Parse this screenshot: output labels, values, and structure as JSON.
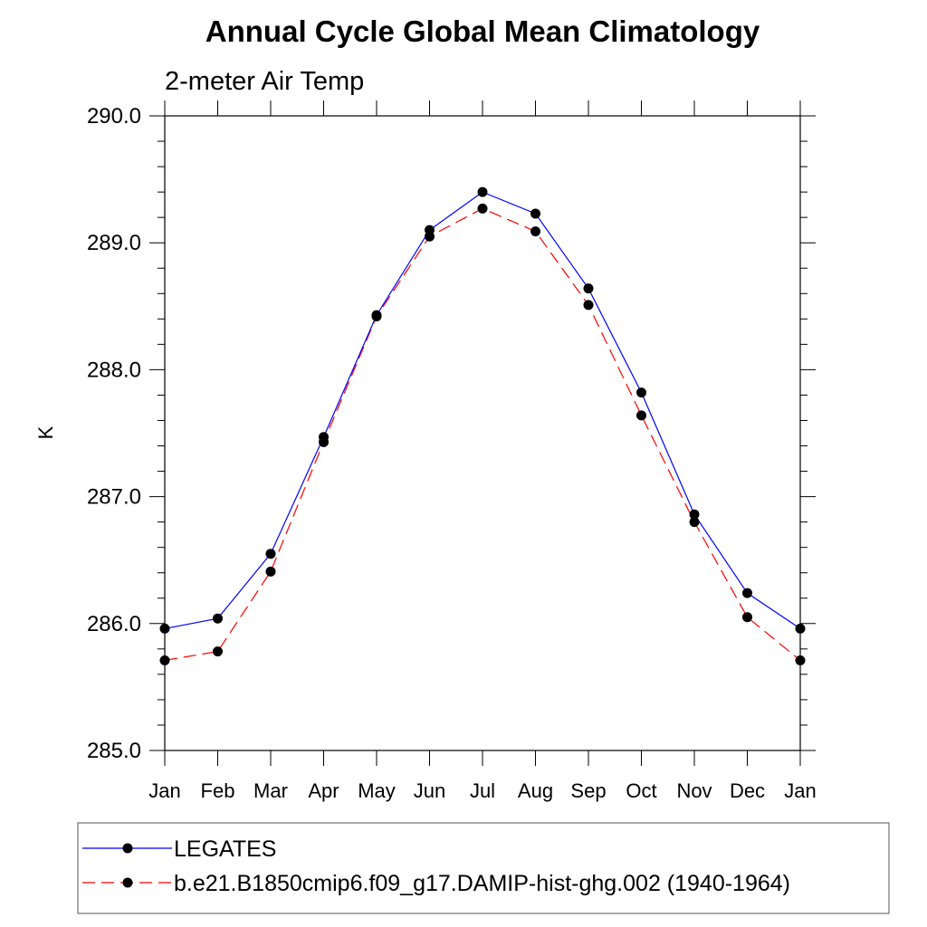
{
  "chart_data": {
    "type": "line",
    "title": "Annual Cycle Global Mean Climatology",
    "subtitle": "2-meter Air Temp",
    "xlabel": "",
    "ylabel": "K",
    "categories": [
      "Jan",
      "Feb",
      "Mar",
      "Apr",
      "May",
      "Jun",
      "Jul",
      "Aug",
      "Sep",
      "Oct",
      "Nov",
      "Dec",
      "Jan"
    ],
    "ylim": [
      285.0,
      290.0
    ],
    "yticks": [
      "285.0",
      "286.0",
      "287.0",
      "288.0",
      "289.0",
      "290.0"
    ],
    "grid": false,
    "legend_position": "bottom",
    "series": [
      {
        "name": "LEGATES",
        "color": "#0000ff",
        "dash": "solid",
        "marker": "filled-circle",
        "values": [
          285.96,
          286.04,
          286.55,
          287.47,
          288.43,
          289.1,
          289.4,
          289.23,
          288.64,
          287.82,
          286.86,
          286.24,
          285.96
        ]
      },
      {
        "name": "b.e21.B1850cmip6.f09_g17.DAMIP-hist-ghg.002 (1940-1964)",
        "color": "#ff0000",
        "dash": "dashed",
        "marker": "filled-circle",
        "values": [
          285.71,
          285.78,
          286.41,
          287.43,
          288.42,
          289.05,
          289.27,
          289.09,
          288.51,
          287.64,
          286.8,
          286.05,
          285.71
        ]
      }
    ]
  }
}
